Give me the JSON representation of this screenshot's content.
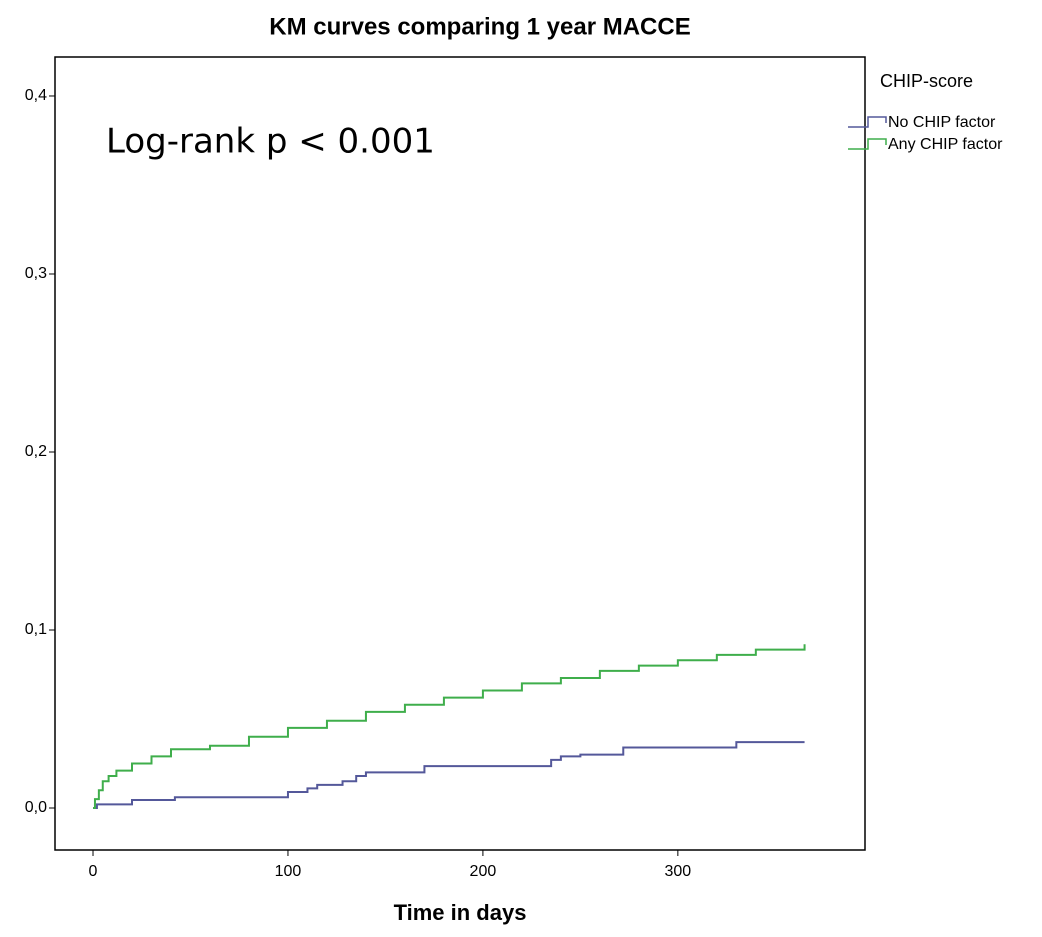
{
  "chart_data": {
    "type": "step",
    "title": "KM curves comparing 1 year MACCE",
    "x_label": "Time in days",
    "annotation": "Log-rank p < 0.001",
    "legend_title": "CHIP-score",
    "legend_position": "outside-right-top",
    "xlim": [
      -19.5,
      396
    ],
    "ylim": [
      -0.0236,
      0.4219
    ],
    "xticks": [
      0,
      100,
      200,
      300
    ],
    "yticks": [
      {
        "value": 0,
        "label": "0,0"
      },
      {
        "value": 0.1,
        "label": "0,1"
      },
      {
        "value": 0.2,
        "label": "0,2"
      },
      {
        "value": 0.3,
        "label": "0,3"
      },
      {
        "value": 0.4,
        "label": "0,4"
      }
    ],
    "series": [
      {
        "name": "No CHIP factor",
        "color": "#54589a",
        "x": [
          0,
          2,
          20,
          42,
          100,
          110,
          115,
          128,
          135,
          140,
          170,
          235,
          240,
          250,
          272,
          330,
          365
        ],
        "values": [
          0,
          0.002,
          0.0045,
          0.006,
          0.009,
          0.011,
          0.013,
          0.015,
          0.018,
          0.02,
          0.0235,
          0.027,
          0.029,
          0.03,
          0.034,
          0.037,
          0.037
        ]
      },
      {
        "name": "Any CHIP factor",
        "color": "#3fae4b",
        "x": [
          0,
          1,
          3,
          5,
          8,
          12,
          20,
          30,
          40,
          60,
          80,
          100,
          120,
          140,
          160,
          180,
          200,
          220,
          240,
          260,
          280,
          300,
          320,
          340,
          365
        ],
        "values": [
          0,
          0.005,
          0.01,
          0.015,
          0.018,
          0.021,
          0.025,
          0.029,
          0.033,
          0.035,
          0.04,
          0.045,
          0.049,
          0.054,
          0.058,
          0.062,
          0.066,
          0.07,
          0.073,
          0.077,
          0.08,
          0.083,
          0.086,
          0.089,
          0.092
        ]
      }
    ]
  }
}
